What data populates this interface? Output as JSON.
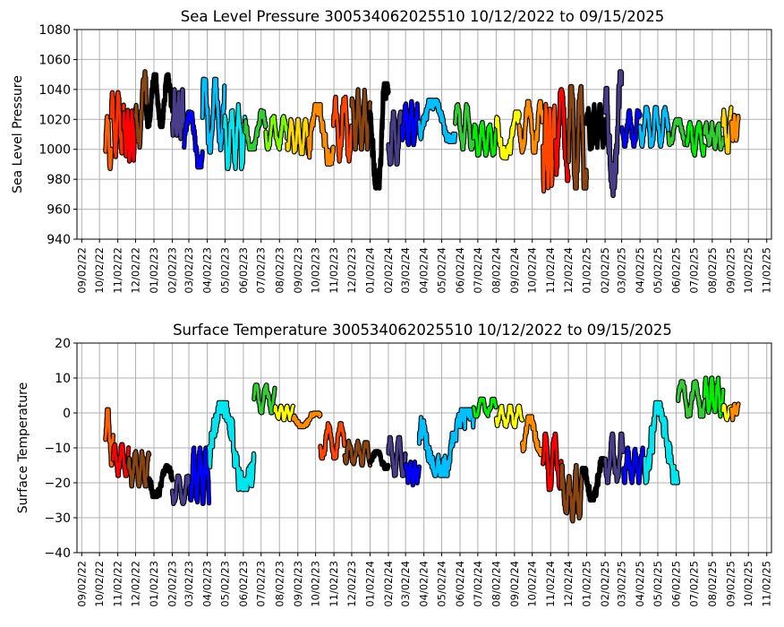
{
  "chart_data": [
    {
      "type": "scatter",
      "title": "Sea Level Pressure 300534062025510  10/12/2022 to 09/15/2025",
      "xlabel": "",
      "ylabel": "Sea Level Pressure",
      "ylim": [
        940,
        1080
      ],
      "yticks": [
        940,
        960,
        980,
        1000,
        1020,
        1040,
        1060,
        1080
      ],
      "xlim": [
        "2022-08-25",
        "2025-11-10"
      ],
      "xtick_labels": [
        "09/02/22",
        "10/02/22",
        "11/02/22",
        "12/02/22",
        "01/02/23",
        "02/02/23",
        "03/02/23",
        "04/02/23",
        "05/02/23",
        "06/02/23",
        "07/02/23",
        "08/02/23",
        "09/02/23",
        "10/02/23",
        "11/02/23",
        "12/02/23",
        "01/02/24",
        "02/02/24",
        "03/02/24",
        "04/02/24",
        "05/02/24",
        "06/02/24",
        "07/02/24",
        "08/02/24",
        "09/02/24",
        "10/02/24",
        "11/02/24",
        "12/02/24",
        "01/02/25",
        "02/02/25",
        "03/02/25",
        "04/02/25",
        "05/02/25",
        "06/02/25",
        "07/02/25",
        "08/02/25",
        "09/02/25",
        "10/02/25",
        "11/02/25"
      ],
      "grid": true,
      "segments": [
        {
          "start": "2022-10-12",
          "end": "2022-10-22",
          "color": "#ff5f00",
          "lo": 987,
          "hi": 1022
        },
        {
          "start": "2022-10-22",
          "end": "2022-11-12",
          "color": "#ff3000",
          "lo": 995,
          "hi": 1038
        },
        {
          "start": "2022-11-12",
          "end": "2022-12-02",
          "color": "#ff0000",
          "lo": 992,
          "hi": 1030
        },
        {
          "start": "2022-12-02",
          "end": "2022-12-20",
          "color": "#8b4513",
          "lo": 1000,
          "hi": 1052
        },
        {
          "start": "2022-12-20",
          "end": "2023-02-02",
          "color": "#000000",
          "lo": 1015,
          "hi": 1050
        },
        {
          "start": "2023-02-02",
          "end": "2023-02-22",
          "color": "#483d8b",
          "lo": 1005,
          "hi": 1040
        },
        {
          "start": "2023-02-22",
          "end": "2023-03-25",
          "color": "#0000ff",
          "lo": 988,
          "hi": 1025
        },
        {
          "start": "2023-03-25",
          "end": "2023-05-01",
          "color": "#00bfff",
          "lo": 998,
          "hi": 1047
        },
        {
          "start": "2023-05-01",
          "end": "2023-06-05",
          "color": "#00e5ee",
          "lo": 987,
          "hi": 1030
        },
        {
          "start": "2023-06-05",
          "end": "2023-07-10",
          "color": "#32cd32",
          "lo": 1000,
          "hi": 1026
        },
        {
          "start": "2023-07-10",
          "end": "2023-08-15",
          "color": "#7cfc00",
          "lo": 1000,
          "hi": 1022
        },
        {
          "start": "2023-08-15",
          "end": "2023-09-20",
          "color": "#ffd700",
          "lo": 997,
          "hi": 1020
        },
        {
          "start": "2023-09-20",
          "end": "2023-11-01",
          "color": "#ff8c00",
          "lo": 990,
          "hi": 1030
        },
        {
          "start": "2023-11-01",
          "end": "2023-12-02",
          "color": "#ff4500",
          "lo": 992,
          "hi": 1035
        },
        {
          "start": "2023-12-02",
          "end": "2024-01-02",
          "color": "#8b4513",
          "lo": 1000,
          "hi": 1040
        },
        {
          "start": "2024-01-02",
          "end": "2024-02-02",
          "color": "#000000",
          "lo": 974,
          "hi": 1044
        },
        {
          "start": "2024-02-02",
          "end": "2024-02-25",
          "color": "#483d8b",
          "lo": 990,
          "hi": 1025
        },
        {
          "start": "2024-02-25",
          "end": "2024-03-25",
          "color": "#0000ff",
          "lo": 1003,
          "hi": 1032
        },
        {
          "start": "2024-03-25",
          "end": "2024-05-25",
          "color": "#00bfff",
          "lo": 1005,
          "hi": 1033
        },
        {
          "start": "2024-05-25",
          "end": "2024-06-25",
          "color": "#32cd32",
          "lo": 1000,
          "hi": 1030
        },
        {
          "start": "2024-06-25",
          "end": "2024-08-02",
          "color": "#00ee00",
          "lo": 996,
          "hi": 1018
        },
        {
          "start": "2024-08-02",
          "end": "2024-09-10",
          "color": "#ffff00",
          "lo": 994,
          "hi": 1025
        },
        {
          "start": "2024-09-10",
          "end": "2024-10-20",
          "color": "#ff8c00",
          "lo": 998,
          "hi": 1032
        },
        {
          "start": "2024-10-20",
          "end": "2024-11-10",
          "color": "#ff4500",
          "lo": 972,
          "hi": 1036
        },
        {
          "start": "2024-11-10",
          "end": "2024-12-02",
          "color": "#ff0000",
          "lo": 979,
          "hi": 1040
        },
        {
          "start": "2024-12-02",
          "end": "2025-01-02",
          "color": "#8b4513",
          "lo": 974,
          "hi": 1042
        },
        {
          "start": "2025-01-02",
          "end": "2025-02-02",
          "color": "#000000",
          "lo": 1000,
          "hi": 1030
        },
        {
          "start": "2025-02-02",
          "end": "2025-03-02",
          "color": "#483d8b",
          "lo": 969,
          "hi": 1052
        },
        {
          "start": "2025-03-02",
          "end": "2025-04-02",
          "color": "#0000ff",
          "lo": 1002,
          "hi": 1026
        },
        {
          "start": "2025-04-02",
          "end": "2025-05-20",
          "color": "#00bfff",
          "lo": 1002,
          "hi": 1028
        },
        {
          "start": "2025-05-20",
          "end": "2025-06-20",
          "color": "#32cd32",
          "lo": 1003,
          "hi": 1020
        },
        {
          "start": "2025-06-20",
          "end": "2025-07-20",
          "color": "#00ee00",
          "lo": 996,
          "hi": 1018
        },
        {
          "start": "2025-07-20",
          "end": "2025-08-20",
          "color": "#32cd32",
          "lo": 1000,
          "hi": 1018
        },
        {
          "start": "2025-08-20",
          "end": "2025-09-03",
          "color": "#ffd700",
          "lo": 998,
          "hi": 1028
        },
        {
          "start": "2025-09-03",
          "end": "2025-09-15",
          "color": "#ff8c00",
          "lo": 1005,
          "hi": 1023
        }
      ]
    },
    {
      "type": "scatter",
      "title": "Surface Temperature 300534062025510  10/12/2022 to 09/15/2025",
      "xlabel": "",
      "ylabel": "Surface Temperature",
      "ylim": [
        -40,
        20
      ],
      "yticks": [
        -40,
        -30,
        -20,
        -10,
        0,
        10,
        20
      ],
      "xlim": [
        "2022-08-25",
        "2025-11-10"
      ],
      "xtick_labels": [
        "09/02/22",
        "10/02/22",
        "11/02/22",
        "12/02/22",
        "01/02/23",
        "02/02/23",
        "03/02/23",
        "04/02/23",
        "05/02/23",
        "06/02/23",
        "07/02/23",
        "08/02/23",
        "09/02/23",
        "10/02/23",
        "11/02/23",
        "12/02/23",
        "01/02/24",
        "02/02/24",
        "03/02/24",
        "04/02/24",
        "05/02/24",
        "06/02/24",
        "07/02/24",
        "08/02/24",
        "09/02/24",
        "10/02/24",
        "11/02/24",
        "12/02/24",
        "01/02/25",
        "02/02/25",
        "03/02/25",
        "04/02/25",
        "05/02/25",
        "06/02/25",
        "07/02/25",
        "08/02/25",
        "09/02/25",
        "10/02/25",
        "11/02/25"
      ],
      "grid": true,
      "segments": [
        {
          "start": "2022-10-12",
          "end": "2022-10-25",
          "color": "#ff5f00",
          "lo": -15,
          "hi": 1
        },
        {
          "start": "2022-10-25",
          "end": "2022-11-20",
          "color": "#ff0000",
          "lo": -18,
          "hi": -9
        },
        {
          "start": "2022-11-20",
          "end": "2022-12-25",
          "color": "#8b4513",
          "lo": -21,
          "hi": -11
        },
        {
          "start": "2022-12-25",
          "end": "2023-02-02",
          "color": "#000000",
          "lo": -24,
          "hi": -15
        },
        {
          "start": "2023-02-02",
          "end": "2023-03-05",
          "color": "#483d8b",
          "lo": -26,
          "hi": -18
        },
        {
          "start": "2023-03-05",
          "end": "2023-04-05",
          "color": "#0000ff",
          "lo": -26,
          "hi": -10
        },
        {
          "start": "2023-04-05",
          "end": "2023-06-20",
          "color": "#00e5ee",
          "lo": -22,
          "hi": 3
        },
        {
          "start": "2023-06-20",
          "end": "2023-07-25",
          "color": "#32cd32",
          "lo": 0,
          "hi": 8
        },
        {
          "start": "2023-07-25",
          "end": "2023-08-25",
          "color": "#ffff00",
          "lo": -2,
          "hi": 2
        },
        {
          "start": "2023-08-25",
          "end": "2023-10-10",
          "color": "#ff8c00",
          "lo": -4,
          "hi": 0
        },
        {
          "start": "2023-10-10",
          "end": "2023-11-20",
          "color": "#ff4500",
          "lo": -13,
          "hi": -3
        },
        {
          "start": "2023-11-20",
          "end": "2024-01-02",
          "color": "#8b4513",
          "lo": -15,
          "hi": -8
        },
        {
          "start": "2024-01-02",
          "end": "2024-02-02",
          "color": "#000000",
          "lo": -16,
          "hi": -11
        },
        {
          "start": "2024-02-02",
          "end": "2024-03-02",
          "color": "#483d8b",
          "lo": -18,
          "hi": -7
        },
        {
          "start": "2024-03-02",
          "end": "2024-03-25",
          "color": "#0000ff",
          "lo": -21,
          "hi": -14
        },
        {
          "start": "2024-03-25",
          "end": "2024-06-25",
          "color": "#00bfff",
          "lo": -18,
          "hi": 1
        },
        {
          "start": "2024-06-25",
          "end": "2024-08-02",
          "color": "#00ee00",
          "lo": -1,
          "hi": 4
        },
        {
          "start": "2024-08-02",
          "end": "2024-09-15",
          "color": "#ffff00",
          "lo": -4,
          "hi": 2
        },
        {
          "start": "2024-09-15",
          "end": "2024-10-20",
          "color": "#ff8c00",
          "lo": -12,
          "hi": -1
        },
        {
          "start": "2024-10-20",
          "end": "2024-11-20",
          "color": "#ff0000",
          "lo": -22,
          "hi": -6
        },
        {
          "start": "2024-11-20",
          "end": "2024-12-25",
          "color": "#8b4513",
          "lo": -31,
          "hi": -15
        },
        {
          "start": "2024-12-25",
          "end": "2025-02-02",
          "color": "#000000",
          "lo": -25,
          "hi": -13
        },
        {
          "start": "2025-02-02",
          "end": "2025-03-05",
          "color": "#483d8b",
          "lo": -20,
          "hi": -6
        },
        {
          "start": "2025-03-05",
          "end": "2025-04-10",
          "color": "#0000ff",
          "lo": -20,
          "hi": -10
        },
        {
          "start": "2025-04-10",
          "end": "2025-06-05",
          "color": "#00e5ee",
          "lo": -20,
          "hi": 3
        },
        {
          "start": "2025-06-05",
          "end": "2025-07-20",
          "color": "#32cd32",
          "lo": -1,
          "hi": 9
        },
        {
          "start": "2025-07-20",
          "end": "2025-08-20",
          "color": "#00ee00",
          "lo": -1,
          "hi": 10
        },
        {
          "start": "2025-08-20",
          "end": "2025-09-03",
          "color": "#ffff00",
          "lo": -2,
          "hi": 3
        },
        {
          "start": "2025-09-03",
          "end": "2025-09-15",
          "color": "#ff8c00",
          "lo": -2,
          "hi": 3
        }
      ]
    }
  ]
}
